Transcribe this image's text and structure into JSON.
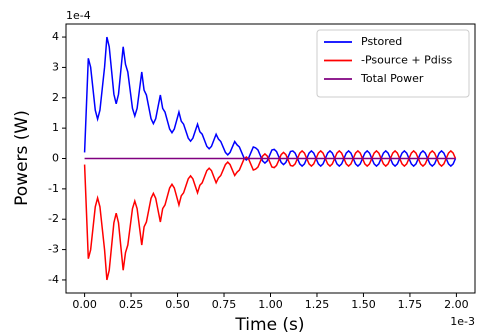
{
  "chart_data": {
    "type": "line",
    "x_label": "Time (s)",
    "y_label": "Powers (W)",
    "x_offset_label": "1e-3",
    "y_offset_label": "1e-4",
    "xlim": [
      -0.1,
      2.1
    ],
    "ylim": [
      -4.43,
      4.43
    ],
    "xticks": [
      {
        "value": 0,
        "label": "0.00"
      },
      {
        "value": 0.25,
        "label": "0.25"
      },
      {
        "value": 0.5,
        "label": "0.50"
      },
      {
        "value": 0.75,
        "label": "0.75"
      },
      {
        "value": 1,
        "label": "1.00"
      },
      {
        "value": 1.25,
        "label": "1.25"
      },
      {
        "value": 1.5,
        "label": "1.50"
      },
      {
        "value": 1.75,
        "label": "1.75"
      },
      {
        "value": 2,
        "label": "2.00"
      }
    ],
    "yticks": [
      -4,
      -3,
      -2,
      -1,
      0,
      1,
      2,
      3,
      4
    ],
    "legend": "upper right",
    "grid": false,
    "x": [
      0,
      0.02,
      0.0325,
      0.045,
      0.0575,
      0.07,
      0.0825,
      0.095,
      0.1075,
      0.12,
      0.1325,
      0.145,
      0.1575,
      0.17,
      0.1825,
      0.195,
      0.2075,
      0.22,
      0.2325,
      0.245,
      0.2575,
      0.27,
      0.2825,
      0.295,
      0.3075,
      0.32,
      0.3325,
      0.345,
      0.3575,
      0.37,
      0.3825,
      0.395,
      0.4075,
      0.42,
      0.4325,
      0.445,
      0.4575,
      0.47,
      0.4825,
      0.495,
      0.5075,
      0.52,
      0.5325,
      0.545,
      0.5575,
      0.57,
      0.5825,
      0.595,
      0.6075,
      0.62,
      0.6325,
      0.645,
      0.6575,
      0.67,
      0.6825,
      0.695,
      0.7075,
      0.72,
      0.7325,
      0.745,
      0.7575,
      0.77,
      0.7825,
      0.795,
      0.8075,
      0.82,
      0.8325,
      0.845,
      0.8575,
      0.87,
      0.8825,
      0.895,
      0.9075,
      0.92,
      0.9325,
      0.945,
      0.9575,
      0.97,
      0.9825,
      0.995,
      1.0075,
      1.02,
      1.0325,
      1.045,
      1.0575,
      1.07,
      1.0825,
      1.095,
      1.1075,
      1.12,
      1.1325,
      1.145,
      1.1575,
      1.17,
      1.1825,
      1.195,
      1.2075,
      1.22,
      1.2325,
      1.245,
      1.2575,
      1.27,
      1.2825,
      1.295,
      1.3075,
      1.32,
      1.3325,
      1.345,
      1.3575,
      1.37,
      1.3825,
      1.395,
      1.4075,
      1.42,
      1.4325,
      1.445,
      1.4575,
      1.47,
      1.4825,
      1.495,
      1.5075,
      1.52,
      1.5325,
      1.545,
      1.5575,
      1.57,
      1.5825,
      1.595,
      1.6075,
      1.62,
      1.6325,
      1.645,
      1.6575,
      1.67,
      1.6825,
      1.695,
      1.7075,
      1.72,
      1.7325,
      1.745,
      1.7575,
      1.77,
      1.7825,
      1.795,
      1.8075,
      1.82,
      1.8325,
      1.845,
      1.8575,
      1.87,
      1.8825,
      1.895,
      1.9075,
      1.92,
      1.9325,
      1.945,
      1.9575,
      1.97,
      1.9825,
      1.995
    ],
    "series": [
      {
        "name": "Pstored",
        "color": "#0000ff",
        "values": [
          0.2,
          3.3,
          3.01,
          2.3,
          1.59,
          1.3,
          1.59,
          2.3,
          3.01,
          4.0,
          3.68,
          2.9,
          2.12,
          1.8,
          2.12,
          2.9,
          3.68,
          3.1,
          2.85,
          2.25,
          1.65,
          1.4,
          1.65,
          2.25,
          2.85,
          2.25,
          2.09,
          1.7,
          1.31,
          1.15,
          1.31,
          1.7,
          2.09,
          1.65,
          1.53,
          1.25,
          0.97,
          0.85,
          0.97,
          1.25,
          1.53,
          1.23,
          1.13,
          0.9,
          0.67,
          0.57,
          0.67,
          0.9,
          1.13,
          0.88,
          0.8,
          0.6,
          0.4,
          0.32,
          0.4,
          0.6,
          0.8,
          0.64,
          0.56,
          0.38,
          0.2,
          0.12,
          0.2,
          0.38,
          0.56,
          0.45,
          0.38,
          0.2,
          0.02,
          -0.05,
          0.02,
          0.2,
          0.38,
          0.35,
          0.28,
          0.1,
          -0.08,
          -0.15,
          -0.08,
          0.1,
          0.28,
          0.3,
          0.23,
          0.05,
          -0.13,
          -0.2,
          -0.13,
          0.05,
          0.23,
          0.25,
          0.18,
          0,
          -0.18,
          -0.25,
          -0.18,
          0,
          0.18,
          0.25,
          0.18,
          0,
          -0.18,
          -0.25,
          -0.18,
          0,
          0.18,
          0.25,
          0.18,
          0,
          -0.18,
          -0.25,
          -0.18,
          0,
          0.18,
          0.25,
          0.18,
          0,
          -0.18,
          -0.25,
          -0.18,
          0,
          0.18,
          0.25,
          0.18,
          0,
          -0.18,
          -0.25,
          -0.18,
          0,
          0.18,
          0.25,
          0.18,
          0,
          -0.18,
          -0.25,
          -0.18,
          0,
          0.18,
          0.25,
          0.18,
          0,
          -0.18,
          -0.25,
          -0.18,
          0,
          0.18,
          0.25,
          0.18,
          0,
          -0.18,
          -0.25,
          -0.18,
          0,
          0.18,
          0.25,
          0.18,
          0,
          -0.18,
          -0.25,
          -0.18,
          0
        ]
      },
      {
        "name": "-Psource + Pdiss",
        "color": "#ff0000",
        "values": [
          -0.2,
          -3.3,
          -3.01,
          -2.3,
          -1.59,
          -1.3,
          -1.59,
          -2.3,
          -3.01,
          -4.0,
          -3.68,
          -2.9,
          -2.12,
          -1.8,
          -2.12,
          -2.9,
          -3.68,
          -3.1,
          -2.85,
          -2.25,
          -1.65,
          -1.4,
          -1.65,
          -2.25,
          -2.85,
          -2.25,
          -2.09,
          -1.7,
          -1.31,
          -1.15,
          -1.31,
          -1.7,
          -2.09,
          -1.65,
          -1.53,
          -1.25,
          -0.97,
          -0.85,
          -0.97,
          -1.25,
          -1.53,
          -1.23,
          -1.13,
          -0.9,
          -0.67,
          -0.57,
          -0.67,
          -0.9,
          -1.13,
          -0.88,
          -0.8,
          -0.6,
          -0.4,
          -0.32,
          -0.4,
          -0.6,
          -0.8,
          -0.64,
          -0.56,
          -0.38,
          -0.2,
          -0.12,
          -0.2,
          -0.38,
          -0.56,
          -0.45,
          -0.38,
          -0.2,
          -0.02,
          0.05,
          -0.02,
          -0.2,
          -0.38,
          -0.35,
          -0.28,
          -0.1,
          0.08,
          0.15,
          0.08,
          -0.1,
          -0.28,
          -0.3,
          -0.23,
          -0.05,
          0.13,
          0.2,
          0.13,
          -0.05,
          -0.23,
          -0.25,
          -0.18,
          0,
          0.18,
          0.25,
          0.18,
          0,
          -0.18,
          -0.25,
          -0.18,
          0,
          0.18,
          0.25,
          0.18,
          0,
          -0.18,
          -0.25,
          -0.18,
          0,
          0.18,
          0.25,
          0.18,
          0,
          -0.18,
          -0.25,
          -0.18,
          0,
          0.18,
          0.25,
          0.18,
          0,
          -0.18,
          -0.25,
          -0.18,
          0,
          0.18,
          0.25,
          0.18,
          0,
          -0.18,
          -0.25,
          -0.18,
          0,
          0.18,
          0.25,
          0.18,
          0,
          -0.18,
          -0.25,
          -0.18,
          0,
          0.18,
          0.25,
          0.18,
          0,
          -0.18,
          -0.25,
          -0.18,
          0,
          0.18,
          0.25,
          0.18,
          0,
          -0.18,
          -0.25,
          -0.18,
          0,
          0.18,
          0.25,
          0.18,
          0
        ]
      },
      {
        "name": "Total Power",
        "color": "#800080",
        "values": [
          0,
          0,
          0,
          0,
          0,
          0,
          0,
          0,
          0,
          0,
          0,
          0,
          0,
          0,
          0,
          0,
          0,
          0,
          0,
          0,
          0,
          0,
          0,
          0,
          0,
          0,
          0,
          0,
          0,
          0,
          0,
          0,
          0,
          0,
          0,
          0,
          0,
          0,
          0,
          0,
          0,
          0,
          0,
          0,
          0,
          0,
          0,
          0,
          0,
          0,
          0,
          0,
          0,
          0,
          0,
          0,
          0,
          0,
          0,
          0,
          0,
          0,
          0,
          0,
          0,
          0,
          0,
          0,
          0,
          0,
          0,
          0,
          0,
          0,
          0,
          0,
          0,
          0,
          0,
          0,
          0,
          0,
          0,
          0,
          0,
          0,
          0,
          0,
          0,
          0,
          0,
          0,
          0,
          0,
          0,
          0,
          0,
          0,
          0,
          0,
          0,
          0,
          0,
          0,
          0,
          0,
          0,
          0,
          0,
          0,
          0,
          0,
          0,
          0,
          0,
          0,
          0,
          0,
          0,
          0,
          0,
          0,
          0,
          0,
          0,
          0,
          0,
          0,
          0,
          0,
          0,
          0,
          0,
          0,
          0,
          0,
          0,
          0,
          0,
          0,
          0,
          0,
          0,
          0,
          0,
          0,
          0,
          0,
          0,
          0,
          0,
          0,
          0,
          0,
          0,
          0,
          0,
          0,
          0,
          0
        ]
      }
    ]
  }
}
